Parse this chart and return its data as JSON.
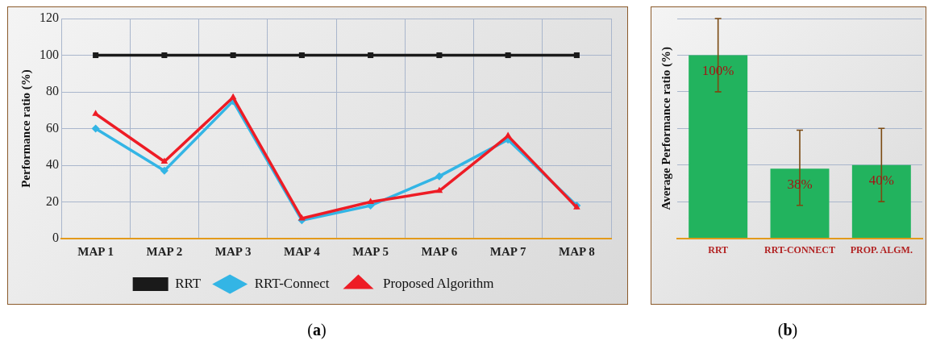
{
  "chart_data": [
    {
      "type": "line",
      "ylabel": "Performance ratio (%)",
      "categories": [
        "MAP 1",
        "MAP 2",
        "MAP 3",
        "MAP 4",
        "MAP 5",
        "MAP 6",
        "MAP 7",
        "MAP 8"
      ],
      "series": [
        {
          "name": "RRT",
          "color": "#1a1a1a",
          "marker": "square",
          "values": [
            100,
            100,
            100,
            100,
            100,
            100,
            100,
            100
          ]
        },
        {
          "name": "RRT-Connect",
          "color": "#33b5e5",
          "marker": "diamond",
          "values": [
            60,
            37,
            75,
            10,
            18,
            34,
            54,
            18
          ]
        },
        {
          "name": "Proposed Algorithm",
          "color": "#ee1c25",
          "marker": "triangle",
          "values": [
            68,
            42,
            77,
            11,
            20,
            26,
            56,
            17
          ]
        }
      ],
      "ylim": [
        0,
        120
      ],
      "yticks": [
        0,
        20,
        40,
        60,
        80,
        100,
        120
      ],
      "grid": true,
      "legend": "bottom",
      "line_style": "solid",
      "annotations": [
        "(a)"
      ]
    },
    {
      "type": "bar",
      "ylabel": "Average Performance ratio (%)",
      "categories": [
        "RRT",
        "RRT-CONNECT",
        "PROP. ALGM."
      ],
      "values": [
        100,
        38,
        40
      ],
      "color": "#22b35e",
      "errors": [
        20,
        [
          18,
          59
        ],
        [
          20,
          60
        ]
      ],
      "value_labels": [
        "100%",
        "38%",
        "40%"
      ],
      "ylim": [
        0,
        120
      ],
      "yticks": [
        {
          "value": 0,
          "label": null
        },
        {
          "value": 20,
          "label": null
        },
        {
          "value": 40,
          "label": null
        },
        {
          "value": 60,
          "label": null
        },
        {
          "value": 80,
          "label": null
        },
        {
          "value": 100,
          "label": null
        },
        {
          "value": 120,
          "label": null
        }
      ],
      "tick_labels": "x",
      "grid": "y",
      "annotations": [
        "(b)"
      ]
    }
  ]
}
